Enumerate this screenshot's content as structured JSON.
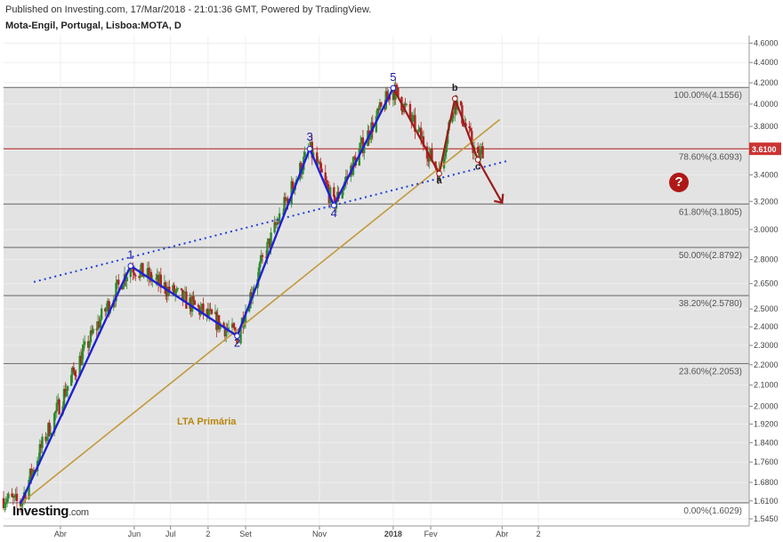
{
  "header": {
    "published": "Published on Investing.com, 17/Mar/2018 - 21:01:36 GMT, Powered by TradingView.",
    "ticker": "Mota-Engil, Portugal, Lisboa:MOTA, D"
  },
  "logo": {
    "brand": "Investing",
    "domain": ".com"
  },
  "annotation": {
    "lta_label": "LTA Primária",
    "question": "?"
  },
  "chart_data": {
    "type": "candlestick",
    "x_tick_labels": [
      "Abr",
      "Jun",
      "Jul",
      "2",
      "Set",
      "Nov",
      "2018",
      "Fev",
      "Abr",
      "2"
    ],
    "y_tick_labels": [
      "4.6000",
      "4.4000",
      "4.2000",
      "4.0000",
      "3.8000",
      "3.6000",
      "3.4000",
      "3.2000",
      "3.0000",
      "2.8000",
      "2.6500",
      "2.5000",
      "2.4000",
      "2.3000",
      "2.2000",
      "2.1000",
      "2.0000",
      "1.9200",
      "1.8400",
      "1.7600",
      "1.6800",
      "1.6100",
      "1.5450"
    ],
    "y_axis_scale": "log",
    "ylim": [
      1.52,
      4.68
    ],
    "last_price": "3.6100",
    "fib_levels": [
      {
        "label": "100.00%(4.1556)",
        "value": 4.1556
      },
      {
        "label": "78.60%(3.6093)",
        "value": 3.6093
      },
      {
        "label": "61.80%(3.1805)",
        "value": 3.1805
      },
      {
        "label": "50.00%(2.8792)",
        "value": 2.8792
      },
      {
        "label": "38.20%(2.5780)",
        "value": 2.578
      },
      {
        "label": "23.60%(2.2053)",
        "value": 2.2053
      },
      {
        "label": "0.00%(1.6029)",
        "value": 1.6029
      }
    ],
    "elliott_wave_labels": [
      "1",
      "2",
      "3",
      "4",
      "5",
      "a",
      "b",
      "c"
    ],
    "elliott_waves": [
      {
        "label": "1",
        "date": "2017-05-29",
        "price": 2.76
      },
      {
        "label": "2",
        "date": "2017-08-25",
        "price": 2.35
      },
      {
        "label": "3",
        "date": "2017-10-24",
        "price": 3.61
      },
      {
        "label": "4",
        "date": "2017-11-13",
        "price": 3.17
      },
      {
        "label": "5",
        "date": "2018-01-01",
        "price": 4.15
      },
      {
        "label": "a",
        "date": "2018-02-08",
        "price": 3.41
      },
      {
        "label": "b",
        "date": "2018-02-21",
        "price": 4.05
      },
      {
        "label": "c",
        "date": "2018-03-12",
        "price": 3.52
      }
    ],
    "grid": true,
    "colors": {
      "up": "#2e8b2e",
      "down": "#b22222",
      "impulse": "#1f1fd6",
      "correction": "#9b1b1b",
      "trendline": "#c29a3c",
      "price_line": "#cc3333",
      "dotted": "#1f3fd6"
    }
  }
}
